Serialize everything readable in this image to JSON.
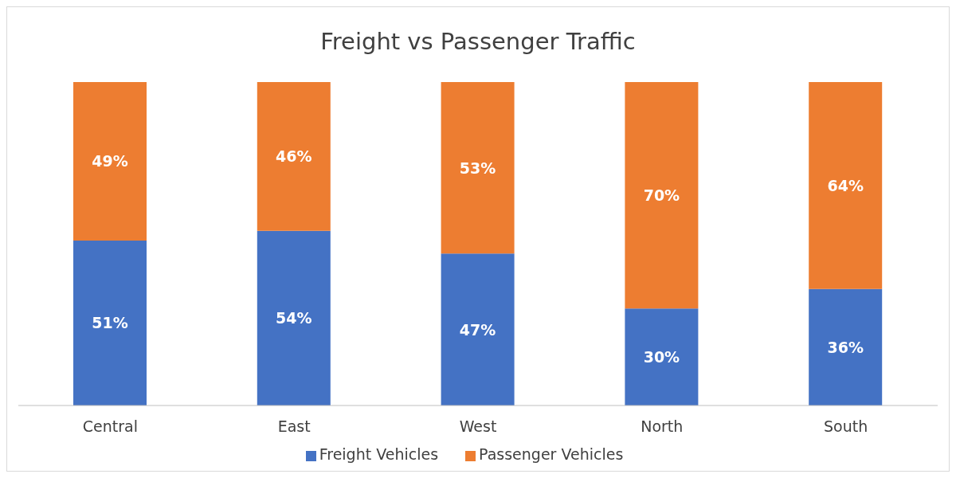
{
  "chart_data": {
    "type": "bar",
    "title": "Freight vs Passenger Traffic",
    "categories": [
      "Central",
      "East",
      "West",
      "North",
      "South"
    ],
    "stacked": true,
    "ylim": [
      0,
      100
    ],
    "tick_labels": "x",
    "grid": false,
    "legend": "bottom",
    "series": [
      {
        "name": "Freight Vehicles",
        "color": "#4472c4",
        "values": [
          51,
          54,
          47,
          30,
          36
        ],
        "value_labels": [
          "51%",
          "54%",
          "47%",
          "30%",
          "36%"
        ]
      },
      {
        "name": "Passenger Vehicles",
        "color": "#ed7d31",
        "values": [
          49,
          46,
          53,
          70,
          64
        ],
        "value_labels": [
          "49%",
          "46%",
          "53%",
          "70%",
          "64%"
        ]
      }
    ]
  }
}
